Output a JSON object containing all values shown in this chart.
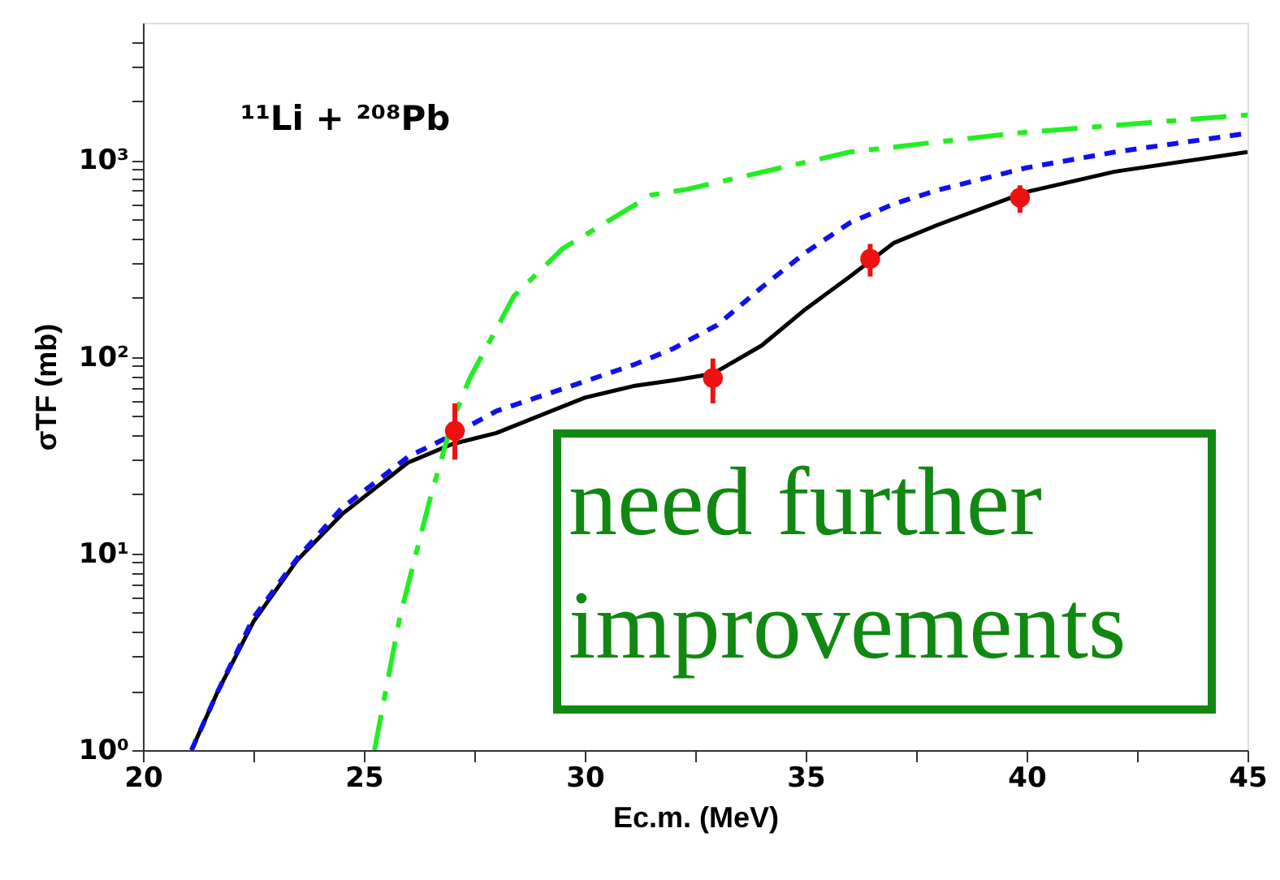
{
  "chart_data": {
    "type": "line",
    "xlabel": "Ec.m. (MeV)",
    "ylabel": "σTF (mb)",
    "log": "y",
    "xlim": [
      20,
      45
    ],
    "xticks": [
      20,
      {
        "value": 22.5,
        "label": null
      },
      25,
      {
        "value": 27.5,
        "label": null
      },
      30,
      {
        "value": 32.5,
        "label": null
      },
      35,
      {
        "value": 37.5,
        "label": null
      },
      40,
      {
        "value": 42.5,
        "label": null
      },
      45
    ],
    "ylim": [
      1,
      5000
    ],
    "yticks": [
      {
        "value": 1,
        "label": "10⁰"
      },
      {
        "value": 2,
        "label": null
      },
      {
        "value": 3,
        "label": null
      },
      {
        "value": 4,
        "label": null
      },
      {
        "value": 5,
        "label": null
      },
      {
        "value": 6,
        "label": null
      },
      {
        "value": 7,
        "label": null
      },
      {
        "value": 8,
        "label": null
      },
      {
        "value": 9,
        "label": null
      },
      {
        "value": 10,
        "label": "10¹"
      },
      {
        "value": 20,
        "label": null
      },
      {
        "value": 30,
        "label": null
      },
      {
        "value": 40,
        "label": null
      },
      {
        "value": 50,
        "label": null
      },
      {
        "value": 60,
        "label": null
      },
      {
        "value": 70,
        "label": null
      },
      {
        "value": 80,
        "label": null
      },
      {
        "value": 90,
        "label": null
      },
      {
        "value": 100,
        "label": "10²"
      },
      {
        "value": 200,
        "label": null
      },
      {
        "value": 300,
        "label": null
      },
      {
        "value": 400,
        "label": null
      },
      {
        "value": 500,
        "label": null
      },
      {
        "value": 600,
        "label": null
      },
      {
        "value": 700,
        "label": null
      },
      {
        "value": 800,
        "label": null
      },
      {
        "value": 900,
        "label": null
      },
      {
        "value": 1000,
        "label": "10³"
      },
      {
        "value": 2000,
        "label": null
      },
      {
        "value": 3000,
        "label": null
      },
      {
        "value": 4000,
        "label": null
      }
    ],
    "annotations": [
      "¹¹Li + ²⁰⁸Pb",
      "need further improvements"
    ],
    "series": [
      {
        "line_style": "solid",
        "color": "#000000",
        "x": [
          21.1,
          21.7,
          22.5,
          23.5,
          24.5,
          26,
          27,
          28,
          30,
          31.1,
          32,
          32.9,
          34,
          35,
          36,
          37,
          38,
          40,
          42,
          45
        ],
        "values": [
          1,
          2,
          4.5,
          9.3,
          15.8,
          29,
          36,
          41,
          62,
          71,
          76,
          82,
          114,
          175,
          256,
          380,
          470,
          690,
          875,
          1100
        ]
      },
      {
        "line_style": "dotted",
        "color": "#1010ee",
        "x": [
          21.1,
          21.7,
          22.5,
          23.5,
          24.5,
          26,
          27,
          28,
          30,
          31.1,
          32,
          33,
          34,
          35,
          36,
          37,
          38,
          40,
          42,
          45
        ],
        "values": [
          1,
          2,
          4.7,
          9.5,
          17,
          31,
          40,
          53,
          75,
          91,
          110,
          145,
          225,
          340,
          480,
          600,
          705,
          915,
          1100,
          1370
        ]
      },
      {
        "line_style": "dashed",
        "color": "#22ee22",
        "x": [
          25.24,
          25.82,
          26.5,
          27,
          27.4,
          28.4,
          29.5,
          31.5,
          32.3,
          36,
          39.7,
          45
        ],
        "values": [
          1,
          4.8,
          19,
          47,
          78,
          204,
          355,
          665,
          710,
          1100,
          1370,
          1700
        ]
      },
      {
        "type": "scatter",
        "marker": "circle",
        "color": "#ee1111",
        "x": [
          27.06,
          32.9,
          36.46,
          39.85
        ],
        "values": [
          42,
          78,
          315,
          645
        ],
        "errors": [
          [
            30,
            58
          ],
          [
            58,
            98
          ],
          [
            256,
            375
          ],
          [
            540,
            745
          ]
        ]
      }
    ]
  }
}
